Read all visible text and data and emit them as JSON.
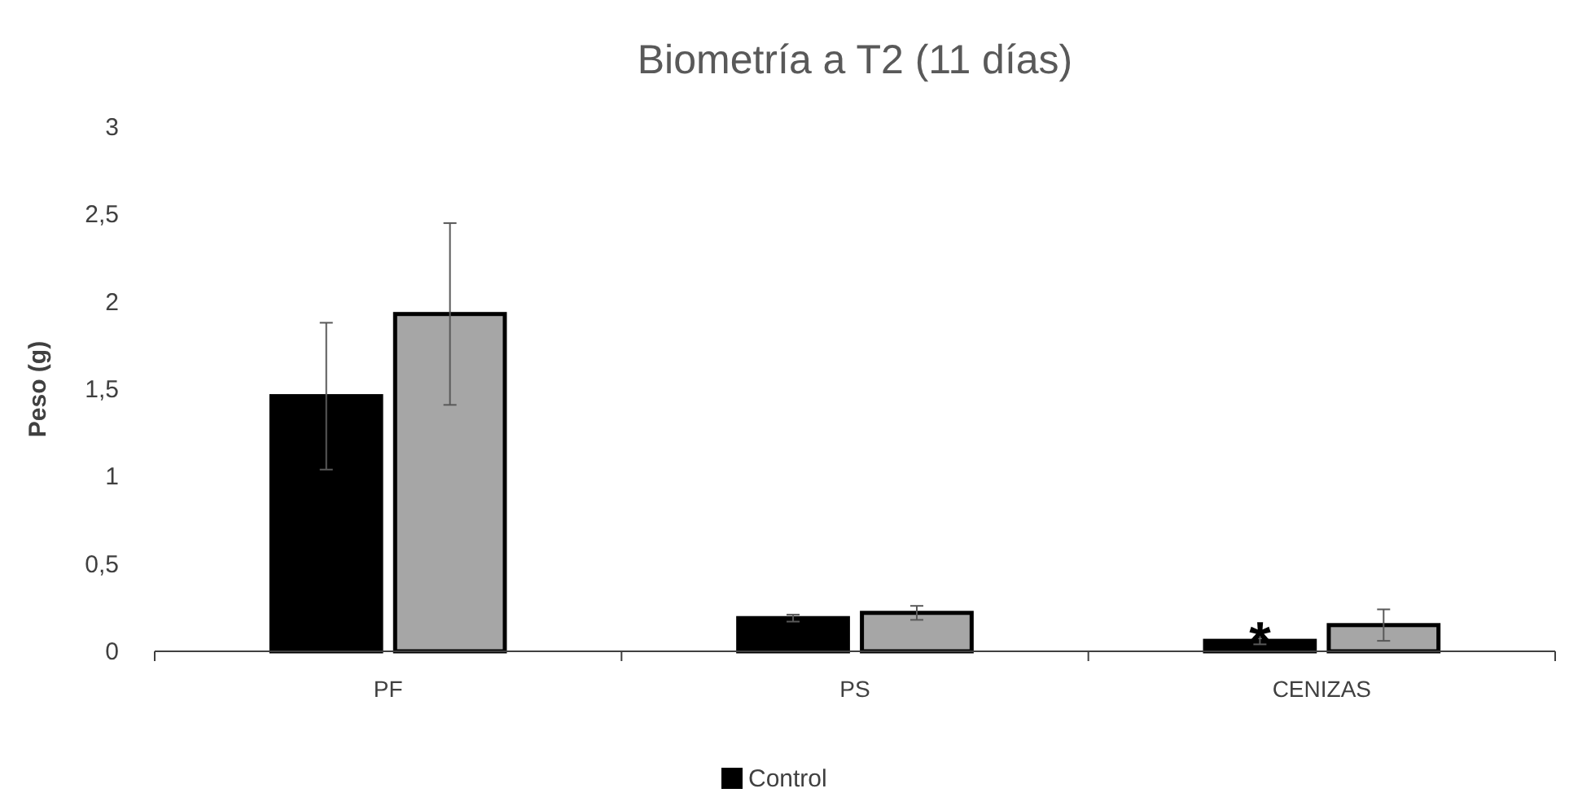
{
  "chart_data": {
    "type": "bar",
    "title": "Biometría a T2 (11 días)",
    "ylabel": "Peso (g)",
    "categories": [
      "PF",
      "PS",
      "CENIZAS"
    ],
    "series": [
      {
        "name": "Control",
        "color": "#000000",
        "values": [
          1.46,
          0.19,
          0.06
        ],
        "errors": [
          0.42,
          0.02,
          0.02
        ]
      },
      {
        "color": "#a6a6a6",
        "values": [
          1.93,
          0.22,
          0.15
        ],
        "errors": [
          0.52,
          0.04,
          0.09
        ]
      }
    ],
    "ylim": [
      0,
      3
    ],
    "yticks": [
      0,
      {
        "value": 0.5,
        "label": "0,5"
      },
      1,
      {
        "value": 1.5,
        "label": "1,5"
      },
      2,
      {
        "value": 2.5,
        "label": "2,5"
      },
      3
    ],
    "annotations": [
      {
        "text": "*",
        "x": "CENIZAS",
        "y": 0.1
      }
    ],
    "legend": "bottom"
  }
}
